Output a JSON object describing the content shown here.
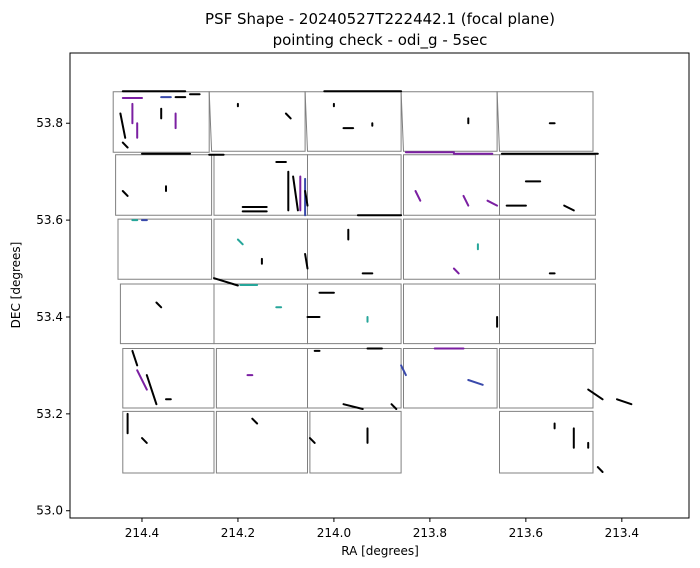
{
  "chart_data": {
    "type": "scatter",
    "title": "PSF Shape - 20240527T222442.1 (focal plane)",
    "subtitle": "pointing check - odi_g - 5sec",
    "xlabel": "RA [degrees]",
    "ylabel": "DEC [degrees]",
    "x_inverted": true,
    "xlim": [
      214.55,
      213.26
    ],
    "ylim": [
      52.985,
      53.945
    ],
    "x_ticks": [
      214.4,
      214.2,
      214.0,
      213.8,
      213.6,
      213.4
    ],
    "x_tick_labels": [
      "214.4",
      "214.2",
      "214.0",
      "213.8",
      "213.6",
      "213.4"
    ],
    "y_ticks": [
      53.0,
      53.2,
      53.4,
      53.6,
      53.8
    ],
    "y_tick_labels": [
      "53.0",
      "53.2",
      "53.4",
      "53.6",
      "53.8"
    ],
    "grid": false,
    "legend": "none",
    "colors": {
      "frame": "#000000",
      "ccd_outline": "#808080",
      "whisker": "#000000",
      "whisker_purple": "#7b1fa2",
      "whisker_blue": "#3949ab",
      "whisker_teal": "#26a69a"
    },
    "ccd_outlines": [
      [
        [
          214.46,
          53.865
        ],
        [
          214.26,
          53.865
        ],
        [
          214.26,
          53.74
        ],
        [
          214.46,
          53.74
        ]
      ],
      [
        [
          214.26,
          53.865
        ],
        [
          214.06,
          53.865
        ],
        [
          214.06,
          53.742
        ],
        [
          214.255,
          53.742
        ]
      ],
      [
        [
          214.06,
          53.865
        ],
        [
          213.86,
          53.865
        ],
        [
          213.86,
          53.742
        ],
        [
          214.055,
          53.742
        ]
      ],
      [
        [
          213.86,
          53.865
        ],
        [
          213.66,
          53.865
        ],
        [
          213.66,
          53.742
        ],
        [
          213.855,
          53.742
        ]
      ],
      [
        [
          213.66,
          53.865
        ],
        [
          213.46,
          53.865
        ],
        [
          213.46,
          53.742
        ],
        [
          213.655,
          53.742
        ]
      ],
      [
        [
          214.455,
          53.735
        ],
        [
          214.255,
          53.735
        ],
        [
          214.255,
          53.61
        ],
        [
          214.455,
          53.61
        ]
      ],
      [
        [
          214.25,
          53.735
        ],
        [
          214.055,
          53.735
        ],
        [
          214.055,
          53.61
        ],
        [
          214.25,
          53.61
        ]
      ],
      [
        [
          214.055,
          53.735
        ],
        [
          213.86,
          53.735
        ],
        [
          213.86,
          53.61
        ],
        [
          214.055,
          53.61
        ]
      ],
      [
        [
          213.855,
          53.735
        ],
        [
          213.655,
          53.735
        ],
        [
          213.655,
          53.61
        ],
        [
          213.855,
          53.61
        ]
      ],
      [
        [
          213.655,
          53.735
        ],
        [
          213.455,
          53.735
        ],
        [
          213.455,
          53.61
        ],
        [
          213.655,
          53.61
        ]
      ],
      [
        [
          214.45,
          53.602
        ],
        [
          214.255,
          53.602
        ],
        [
          214.255,
          53.478
        ],
        [
          214.45,
          53.478
        ]
      ],
      [
        [
          214.25,
          53.602
        ],
        [
          214.055,
          53.602
        ],
        [
          214.055,
          53.478
        ],
        [
          214.25,
          53.478
        ]
      ],
      [
        [
          214.055,
          53.602
        ],
        [
          213.86,
          53.602
        ],
        [
          213.86,
          53.478
        ],
        [
          214.055,
          53.478
        ]
      ],
      [
        [
          213.855,
          53.602
        ],
        [
          213.655,
          53.602
        ],
        [
          213.655,
          53.478
        ],
        [
          213.855,
          53.478
        ]
      ],
      [
        [
          213.655,
          53.602
        ],
        [
          213.455,
          53.602
        ],
        [
          213.455,
          53.478
        ],
        [
          213.655,
          53.478
        ]
      ],
      [
        [
          214.445,
          53.468
        ],
        [
          214.25,
          53.468
        ],
        [
          214.25,
          53.345
        ],
        [
          214.445,
          53.345
        ]
      ],
      [
        [
          214.25,
          53.468
        ],
        [
          214.055,
          53.468
        ],
        [
          214.055,
          53.345
        ],
        [
          214.25,
          53.345
        ]
      ],
      [
        [
          214.055,
          53.468
        ],
        [
          213.86,
          53.468
        ],
        [
          213.86,
          53.345
        ],
        [
          214.055,
          53.345
        ]
      ],
      [
        [
          213.855,
          53.468
        ],
        [
          213.655,
          53.468
        ],
        [
          213.655,
          53.345
        ],
        [
          213.855,
          53.345
        ]
      ],
      [
        [
          213.655,
          53.468
        ],
        [
          213.455,
          53.468
        ],
        [
          213.455,
          53.345
        ],
        [
          213.655,
          53.345
        ]
      ],
      [
        [
          214.44,
          53.335
        ],
        [
          214.25,
          53.335
        ],
        [
          214.25,
          53.212
        ],
        [
          214.44,
          53.212
        ]
      ],
      [
        [
          214.245,
          53.335
        ],
        [
          214.055,
          53.335
        ],
        [
          214.055,
          53.212
        ],
        [
          214.245,
          53.212
        ]
      ],
      [
        [
          214.055,
          53.335
        ],
        [
          213.86,
          53.335
        ],
        [
          213.86,
          53.212
        ],
        [
          214.055,
          53.212
        ]
      ],
      [
        [
          213.855,
          53.335
        ],
        [
          213.66,
          53.335
        ],
        [
          213.66,
          53.212
        ],
        [
          213.855,
          53.212
        ]
      ],
      [
        [
          213.655,
          53.335
        ],
        [
          213.46,
          53.335
        ],
        [
          213.46,
          53.212
        ],
        [
          213.655,
          53.212
        ]
      ],
      [
        [
          214.44,
          53.205
        ],
        [
          214.25,
          53.205
        ],
        [
          214.25,
          53.078
        ],
        [
          214.44,
          53.078
        ]
      ],
      [
        [
          214.245,
          53.205
        ],
        [
          214.055,
          53.205
        ],
        [
          214.055,
          53.078
        ],
        [
          214.245,
          53.078
        ]
      ],
      [
        [
          214.05,
          53.205
        ],
        [
          213.86,
          53.205
        ],
        [
          213.86,
          53.078
        ],
        [
          214.05,
          53.078
        ]
      ],
      [
        [
          213.655,
          53.205
        ],
        [
          213.46,
          53.205
        ],
        [
          213.46,
          53.078
        ],
        [
          213.655,
          53.078
        ]
      ]
    ],
    "whiskers": [
      [
        214.44,
        53.866,
        214.31,
        53.866,
        "k"
      ],
      [
        214.3,
        53.86,
        214.28,
        53.86,
        "k"
      ],
      [
        214.44,
        53.852,
        214.4,
        53.852,
        "p"
      ],
      [
        214.36,
        53.854,
        214.34,
        53.854,
        "b"
      ],
      [
        214.33,
        53.854,
        214.31,
        53.854,
        "k"
      ],
      [
        214.42,
        53.84,
        214.42,
        53.8,
        "p"
      ],
      [
        214.41,
        53.8,
        214.41,
        53.77,
        "p"
      ],
      [
        214.33,
        53.82,
        214.33,
        53.79,
        "p"
      ],
      [
        214.445,
        53.82,
        214.435,
        53.77,
        "k"
      ],
      [
        214.44,
        53.76,
        214.43,
        53.75,
        "k"
      ],
      [
        214.36,
        53.83,
        214.36,
        53.81,
        "k"
      ],
      [
        214.2,
        53.84,
        214.2,
        53.835,
        "k"
      ],
      [
        214.1,
        53.82,
        214.09,
        53.81,
        "k"
      ],
      [
        214.02,
        53.866,
        213.86,
        53.866,
        "k"
      ],
      [
        214.0,
        53.84,
        214.0,
        53.835,
        "k"
      ],
      [
        213.98,
        53.79,
        213.96,
        53.79,
        "k"
      ],
      [
        213.92,
        53.8,
        213.92,
        53.795,
        "k"
      ],
      [
        213.72,
        53.81,
        213.72,
        53.8,
        "k"
      ],
      [
        213.55,
        53.8,
        213.54,
        53.8,
        "k"
      ],
      [
        214.4,
        53.737,
        214.3,
        53.737,
        "k"
      ],
      [
        214.26,
        53.735,
        214.23,
        53.735,
        "k"
      ],
      [
        214.44,
        53.66,
        214.43,
        53.65,
        "k"
      ],
      [
        214.35,
        53.67,
        214.35,
        53.66,
        "k"
      ],
      [
        214.19,
        53.627,
        214.14,
        53.627,
        "k"
      ],
      [
        214.19,
        53.618,
        214.14,
        53.618,
        "k"
      ],
      [
        214.095,
        53.7,
        214.095,
        53.62,
        "k"
      ],
      [
        214.085,
        53.69,
        214.075,
        53.62,
        "k"
      ],
      [
        214.07,
        53.69,
        214.07,
        53.62,
        "p"
      ],
      [
        214.06,
        53.685,
        214.06,
        53.61,
        "b"
      ],
      [
        214.06,
        53.66,
        214.055,
        53.63,
        "k"
      ],
      [
        214.12,
        53.72,
        214.1,
        53.72,
        "k"
      ],
      [
        213.95,
        53.61,
        213.86,
        53.61,
        "k"
      ],
      [
        213.85,
        53.74,
        213.75,
        53.74,
        "p"
      ],
      [
        213.75,
        53.737,
        213.67,
        53.737,
        "p"
      ],
      [
        213.65,
        53.737,
        213.45,
        53.737,
        "k"
      ],
      [
        213.83,
        53.66,
        213.82,
        53.64,
        "p"
      ],
      [
        213.73,
        53.65,
        213.72,
        53.63,
        "p"
      ],
      [
        213.68,
        53.64,
        213.66,
        53.63,
        "p"
      ],
      [
        213.64,
        53.63,
        213.6,
        53.63,
        "k"
      ],
      [
        213.6,
        53.68,
        213.57,
        53.68,
        "k"
      ],
      [
        213.52,
        53.63,
        213.5,
        53.62,
        "k"
      ],
      [
        214.42,
        53.6,
        214.41,
        53.6,
        "t"
      ],
      [
        214.4,
        53.6,
        214.39,
        53.6,
        "b"
      ],
      [
        214.2,
        53.56,
        214.19,
        53.55,
        "t"
      ],
      [
        214.15,
        53.52,
        214.15,
        53.51,
        "k"
      ],
      [
        214.06,
        53.53,
        214.055,
        53.5,
        "k"
      ],
      [
        213.97,
        53.58,
        213.97,
        53.56,
        "k"
      ],
      [
        213.94,
        53.49,
        213.92,
        53.49,
        "k"
      ],
      [
        213.75,
        53.5,
        213.74,
        53.49,
        "p"
      ],
      [
        213.7,
        53.55,
        213.7,
        53.54,
        "t"
      ],
      [
        213.55,
        53.49,
        213.54,
        53.49,
        "k"
      ],
      [
        214.25,
        53.48,
        214.2,
        53.465,
        "k"
      ],
      [
        214.195,
        53.466,
        214.16,
        53.466,
        "t"
      ],
      [
        214.12,
        53.42,
        214.11,
        53.42,
        "t"
      ],
      [
        214.055,
        53.4,
        214.03,
        53.4,
        "k"
      ],
      [
        214.03,
        53.45,
        214.0,
        53.45,
        "k"
      ],
      [
        213.93,
        53.4,
        213.93,
        53.39,
        "t"
      ],
      [
        213.66,
        53.4,
        213.66,
        53.38,
        "k"
      ],
      [
        214.37,
        53.43,
        214.36,
        53.42,
        "k"
      ],
      [
        214.42,
        53.33,
        214.41,
        53.3,
        "k"
      ],
      [
        214.41,
        53.29,
        214.39,
        53.25,
        "p"
      ],
      [
        214.39,
        53.28,
        214.37,
        53.22,
        "k"
      ],
      [
        214.35,
        53.23,
        214.34,
        53.23,
        "k"
      ],
      [
        214.18,
        53.28,
        214.17,
        53.28,
        "p"
      ],
      [
        214.04,
        53.33,
        214.03,
        53.33,
        "k"
      ],
      [
        213.93,
        53.335,
        213.9,
        53.335,
        "k"
      ],
      [
        213.86,
        53.3,
        213.85,
        53.28,
        "b"
      ],
      [
        213.79,
        53.335,
        213.73,
        53.335,
        "p"
      ],
      [
        213.72,
        53.27,
        213.69,
        53.26,
        "b"
      ],
      [
        213.47,
        53.25,
        213.44,
        53.23,
        "k"
      ],
      [
        213.41,
        53.23,
        213.38,
        53.22,
        "k"
      ],
      [
        213.98,
        53.22,
        213.94,
        53.21,
        "k"
      ],
      [
        213.88,
        53.22,
        213.87,
        53.21,
        "k"
      ],
      [
        214.43,
        53.2,
        214.43,
        53.16,
        "k"
      ],
      [
        214.4,
        53.15,
        214.39,
        53.14,
        "k"
      ],
      [
        213.93,
        53.17,
        213.93,
        53.14,
        "k"
      ],
      [
        213.54,
        53.18,
        213.54,
        53.17,
        "k"
      ],
      [
        213.5,
        53.17,
        213.5,
        53.13,
        "k"
      ],
      [
        213.47,
        53.14,
        213.47,
        53.13,
        "k"
      ],
      [
        213.45,
        53.09,
        213.44,
        53.08,
        "k"
      ],
      [
        214.05,
        53.15,
        214.04,
        53.14,
        "k"
      ],
      [
        214.17,
        53.19,
        214.16,
        53.18,
        "k"
      ]
    ]
  }
}
